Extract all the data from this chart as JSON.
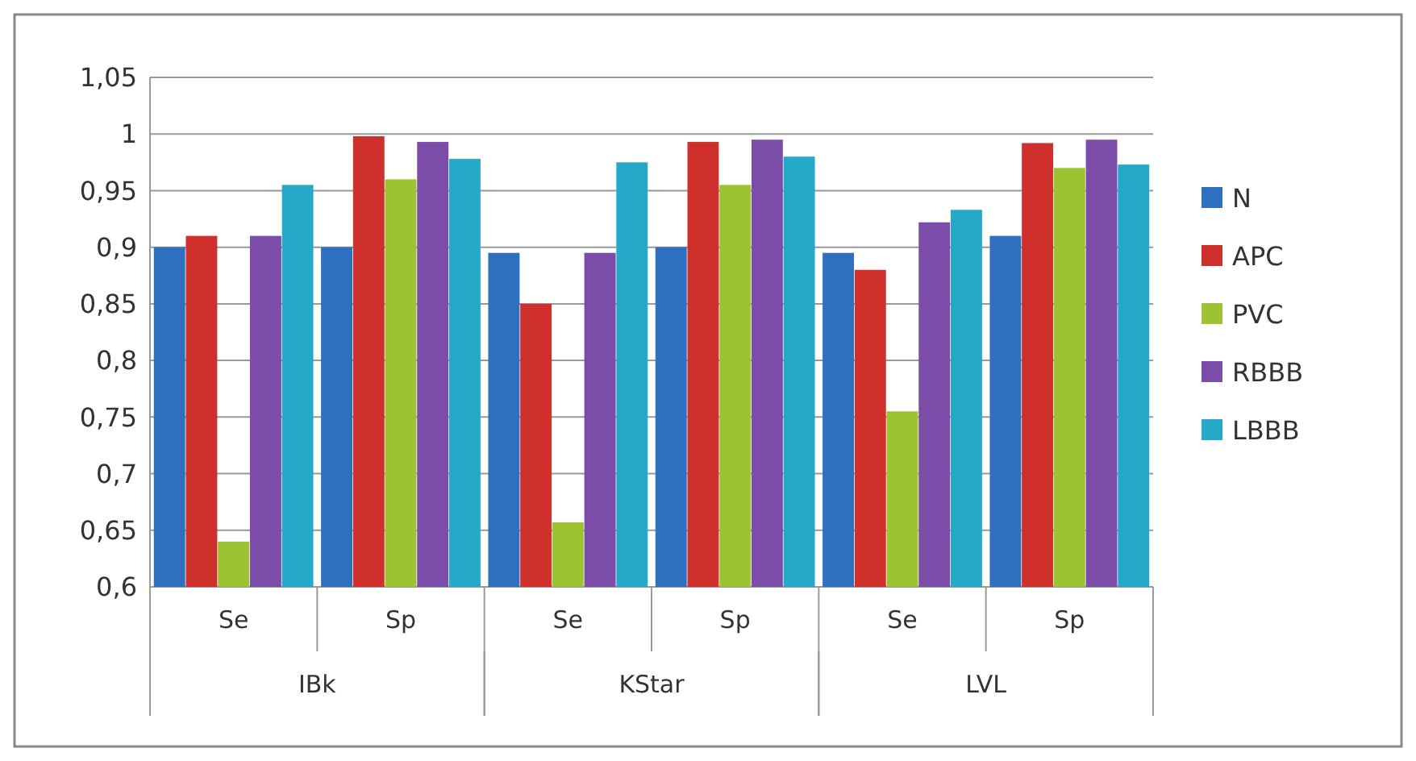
{
  "chart_data": {
    "type": "bar",
    "categories": [
      "Se",
      "Sp",
      "Se",
      "Sp",
      "Se",
      "Sp"
    ],
    "series": [
      {
        "name": "N",
        "color": "#2e6fc0",
        "values": [
          0.9,
          0.9,
          0.895,
          0.9,
          0.895,
          0.91
        ]
      },
      {
        "name": "APC",
        "color": "#d0302c",
        "values": [
          0.91,
          0.998,
          0.85,
          0.993,
          0.88,
          0.992
        ]
      },
      {
        "name": "PVC",
        "color": "#9cc332",
        "values": [
          0.64,
          0.96,
          0.657,
          0.955,
          0.755,
          0.97
        ]
      },
      {
        "name": "RBBB",
        "color": "#7b4da8",
        "values": [
          0.91,
          0.993,
          0.895,
          0.995,
          0.922,
          0.995
        ]
      },
      {
        "name": "LBBB",
        "color": "#25a9c9",
        "values": [
          0.955,
          0.978,
          0.975,
          0.98,
          0.933,
          0.973
        ]
      }
    ],
    "ylim": [
      0.6,
      1.05
    ],
    "yticks": [
      {
        "value": 0.6,
        "label": "0,6"
      },
      {
        "value": 0.65,
        "label": "0,65"
      },
      {
        "value": 0.7,
        "label": "0,7"
      },
      {
        "value": 0.75,
        "label": "0,75"
      },
      {
        "value": 0.8,
        "label": "0,8"
      },
      {
        "value": 0.85,
        "label": "0,85"
      },
      {
        "value": 0.9,
        "label": "0,9"
      },
      {
        "value": 0.95,
        "label": "0,95"
      },
      {
        "value": 1,
        "label": "1"
      },
      {
        "value": 1.05,
        "label": "1,05"
      }
    ],
    "annotations": [
      "IBk",
      "KStar",
      "LVL"
    ],
    "grid": "y",
    "legend": "right"
  }
}
